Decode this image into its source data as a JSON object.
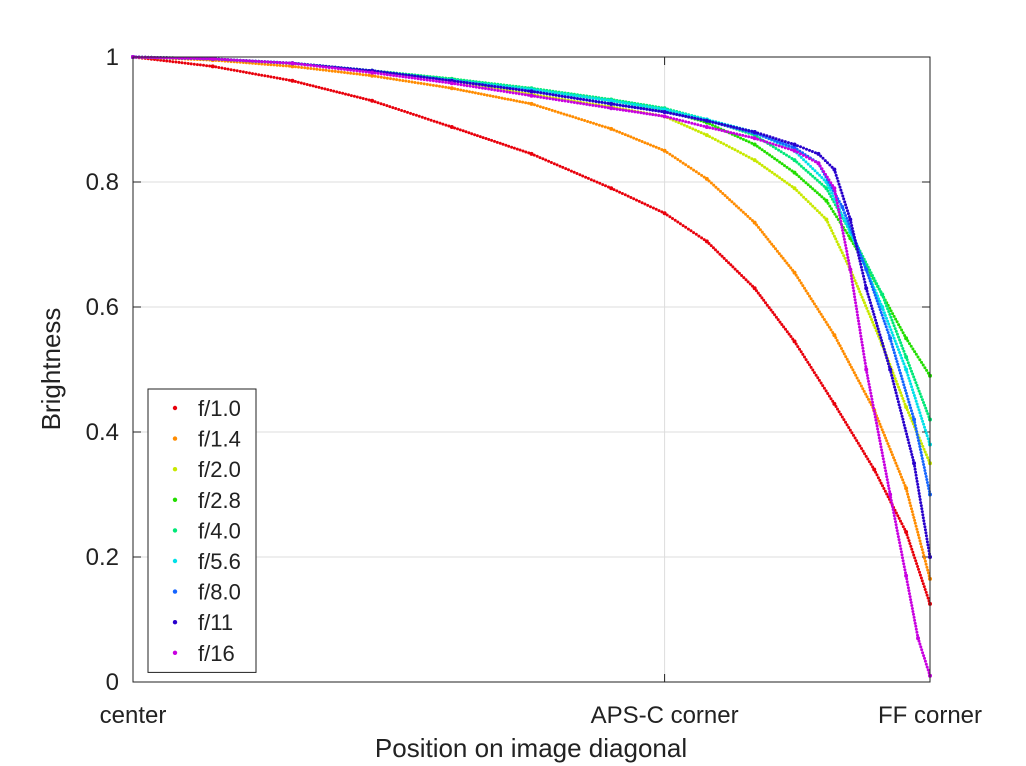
{
  "chart_data": {
    "type": "scatter",
    "xlabel": "Position on image diagonal",
    "ylabel": "Brightness",
    "xlim": [
      0,
      1
    ],
    "ylim": [
      0,
      1
    ],
    "grid": true,
    "legend_position": "bottom-left",
    "x_ticks": [
      {
        "value": 0,
        "label": "center"
      },
      {
        "value": 0.667,
        "label": "APS-C corner"
      },
      {
        "value": 1,
        "label": "FF corner"
      }
    ],
    "y_ticks": [
      {
        "value": 0,
        "label": "0"
      },
      {
        "value": 0.2,
        "label": "0.2"
      },
      {
        "value": 0.4,
        "label": "0.4"
      },
      {
        "value": 0.6,
        "label": "0.6"
      },
      {
        "value": 0.8,
        "label": "0.8"
      },
      {
        "value": 1,
        "label": "1"
      }
    ],
    "series": [
      {
        "name": "f/1.0",
        "color": "#e8000b",
        "x": [
          0,
          0.1,
          0.2,
          0.3,
          0.4,
          0.5,
          0.6,
          0.667,
          0.72,
          0.78,
          0.83,
          0.88,
          0.93,
          0.97,
          1.0
        ],
        "y": [
          1.0,
          0.985,
          0.962,
          0.93,
          0.888,
          0.845,
          0.79,
          0.75,
          0.705,
          0.63,
          0.545,
          0.445,
          0.34,
          0.24,
          0.125
        ]
      },
      {
        "name": "f/1.4",
        "color": "#ff8c00",
        "x": [
          0,
          0.1,
          0.2,
          0.3,
          0.4,
          0.5,
          0.6,
          0.667,
          0.72,
          0.78,
          0.83,
          0.88,
          0.93,
          0.97,
          1.0
        ],
        "y": [
          1.0,
          0.995,
          0.985,
          0.97,
          0.95,
          0.925,
          0.885,
          0.85,
          0.805,
          0.735,
          0.655,
          0.555,
          0.435,
          0.31,
          0.165
        ]
      },
      {
        "name": "f/2.0",
        "color": "#c8e800",
        "x": [
          0,
          0.1,
          0.2,
          0.3,
          0.4,
          0.5,
          0.6,
          0.667,
          0.72,
          0.78,
          0.83,
          0.87,
          0.9,
          0.94,
          0.97,
          1.0
        ],
        "y": [
          1.0,
          0.997,
          0.99,
          0.978,
          0.962,
          0.94,
          0.92,
          0.905,
          0.875,
          0.835,
          0.79,
          0.74,
          0.66,
          0.54,
          0.44,
          0.35
        ]
      },
      {
        "name": "f/2.8",
        "color": "#22dd00",
        "x": [
          0,
          0.1,
          0.2,
          0.3,
          0.4,
          0.5,
          0.6,
          0.667,
          0.72,
          0.78,
          0.83,
          0.87,
          0.9,
          0.94,
          0.97,
          1.0
        ],
        "y": [
          1.0,
          0.997,
          0.99,
          0.978,
          0.965,
          0.948,
          0.93,
          0.915,
          0.895,
          0.86,
          0.815,
          0.77,
          0.71,
          0.62,
          0.55,
          0.49
        ]
      },
      {
        "name": "f/4.0",
        "color": "#00e878",
        "x": [
          0,
          0.1,
          0.2,
          0.3,
          0.4,
          0.5,
          0.6,
          0.667,
          0.72,
          0.78,
          0.83,
          0.87,
          0.9,
          0.94,
          0.97,
          1.0
        ],
        "y": [
          1.0,
          0.997,
          0.99,
          0.978,
          0.965,
          0.95,
          0.932,
          0.918,
          0.9,
          0.875,
          0.835,
          0.79,
          0.72,
          0.62,
          0.52,
          0.42
        ]
      },
      {
        "name": "f/5.6",
        "color": "#00e0e8",
        "x": [
          0,
          0.1,
          0.2,
          0.3,
          0.4,
          0.5,
          0.6,
          0.667,
          0.72,
          0.78,
          0.83,
          0.87,
          0.9,
          0.94,
          0.97,
          1.0
        ],
        "y": [
          1.0,
          0.997,
          0.99,
          0.978,
          0.963,
          0.948,
          0.93,
          0.916,
          0.9,
          0.88,
          0.85,
          0.8,
          0.72,
          0.6,
          0.5,
          0.38
        ]
      },
      {
        "name": "f/8.0",
        "color": "#1464ff",
        "x": [
          0,
          0.1,
          0.2,
          0.3,
          0.4,
          0.5,
          0.6,
          0.667,
          0.72,
          0.78,
          0.83,
          0.86,
          0.89,
          0.92,
          0.95,
          0.98,
          1.0
        ],
        "y": [
          1.0,
          0.997,
          0.99,
          0.978,
          0.962,
          0.945,
          0.925,
          0.912,
          0.898,
          0.878,
          0.855,
          0.83,
          0.76,
          0.66,
          0.55,
          0.42,
          0.3
        ]
      },
      {
        "name": "f/11",
        "color": "#2800cc",
        "x": [
          0,
          0.1,
          0.2,
          0.3,
          0.4,
          0.5,
          0.6,
          0.667,
          0.72,
          0.78,
          0.83,
          0.86,
          0.88,
          0.9,
          0.92,
          0.95,
          0.98,
          1.0
        ],
        "y": [
          1.0,
          0.997,
          0.99,
          0.978,
          0.962,
          0.945,
          0.925,
          0.912,
          0.898,
          0.88,
          0.86,
          0.845,
          0.82,
          0.74,
          0.63,
          0.5,
          0.35,
          0.2
        ]
      },
      {
        "name": "f/16",
        "color": "#c800e0",
        "x": [
          0,
          0.1,
          0.2,
          0.3,
          0.4,
          0.5,
          0.6,
          0.667,
          0.72,
          0.78,
          0.83,
          0.86,
          0.88,
          0.9,
          0.92,
          0.95,
          0.97,
          0.985,
          1.0
        ],
        "y": [
          1.0,
          0.997,
          0.99,
          0.975,
          0.958,
          0.938,
          0.918,
          0.905,
          0.888,
          0.87,
          0.85,
          0.83,
          0.79,
          0.66,
          0.5,
          0.3,
          0.17,
          0.07,
          0.01
        ]
      }
    ]
  }
}
